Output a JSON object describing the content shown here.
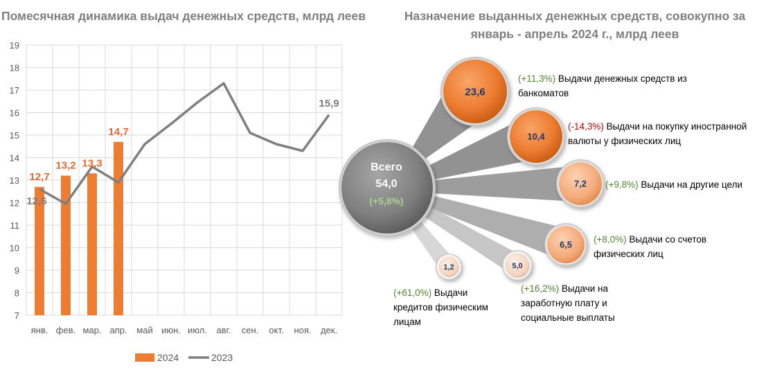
{
  "colors": {
    "bar": "#ed7d31",
    "line": "#7f7f7f",
    "label2024": "#e06a32",
    "grid": "#d9d9d9",
    "green": "#548235",
    "red": "#c00000"
  },
  "left_title": "Помесячная динамика выдач денежных средств, млрд леев",
  "right_title": "Назначение выданных денежных средств, совокупно за январь - апрель 2024 г., млрд леев",
  "chart_data": [
    {
      "type": "bar",
      "title": "Помесячная динамика выдач денежных средств, млрд леев",
      "categories": [
        "янв.",
        "фев.",
        "мар.",
        "апр.",
        "май",
        "июн.",
        "июл.",
        "авг.",
        "сен.",
        "окт.",
        "ноя.",
        "дек."
      ],
      "ylim": [
        7,
        19
      ],
      "yticks": [
        "7",
        "8",
        "9",
        "10",
        "11",
        "12",
        "13",
        "14",
        "15",
        "16",
        "17",
        "18",
        "19"
      ],
      "grid": true,
      "legend_position": "bottom",
      "series": [
        {
          "name": "2024",
          "type": "bar",
          "values": [
            12.7,
            13.2,
            13.3,
            14.7,
            null,
            null,
            null,
            null,
            null,
            null,
            null,
            null
          ],
          "data_labels": [
            "12,7",
            "13,2",
            "13,3",
            "14,7"
          ]
        },
        {
          "name": "2023",
          "type": "line",
          "values": [
            12.6,
            11.95,
            13.6,
            12.9,
            14.6,
            15.5,
            16.45,
            17.3,
            15.1,
            14.6,
            14.3,
            15.9
          ],
          "data_labels": {
            "0": "12,6",
            "11": "15,9"
          }
        }
      ]
    },
    {
      "type": "bubble",
      "title": "Назначение выданных денежных средств, совокупно за январь - апрель 2024 г., млрд леев",
      "total": {
        "label": "Всего",
        "value": "54,0",
        "change": "(+5,8%)"
      },
      "items": [
        {
          "value": "23,6",
          "change": "(+11,3%)",
          "change_sign": "up",
          "label": "Выдачи денежных средств из банкоматов"
        },
        {
          "value": "10,4",
          "change": "(-14,3%)",
          "change_sign": "down",
          "label": "Выдачи на покупку иностранной валюты у физических лиц"
        },
        {
          "value": "7,2",
          "change": "(+9,8%)",
          "change_sign": "up",
          "label": "Выдачи на другие цели"
        },
        {
          "value": "6,5",
          "change": "(+8,0%)",
          "change_sign": "up",
          "label": "Выдачи со счетов физических лиц"
        },
        {
          "value": "5,0",
          "change": "(+16,2%)",
          "change_sign": "up",
          "label": "Выдачи на заработную плату и социальные выплаты"
        },
        {
          "value": "1,2",
          "change": "(+61,0%)",
          "change_sign": "up",
          "label": "Выдачи кредитов физическим лицам"
        }
      ]
    }
  ]
}
